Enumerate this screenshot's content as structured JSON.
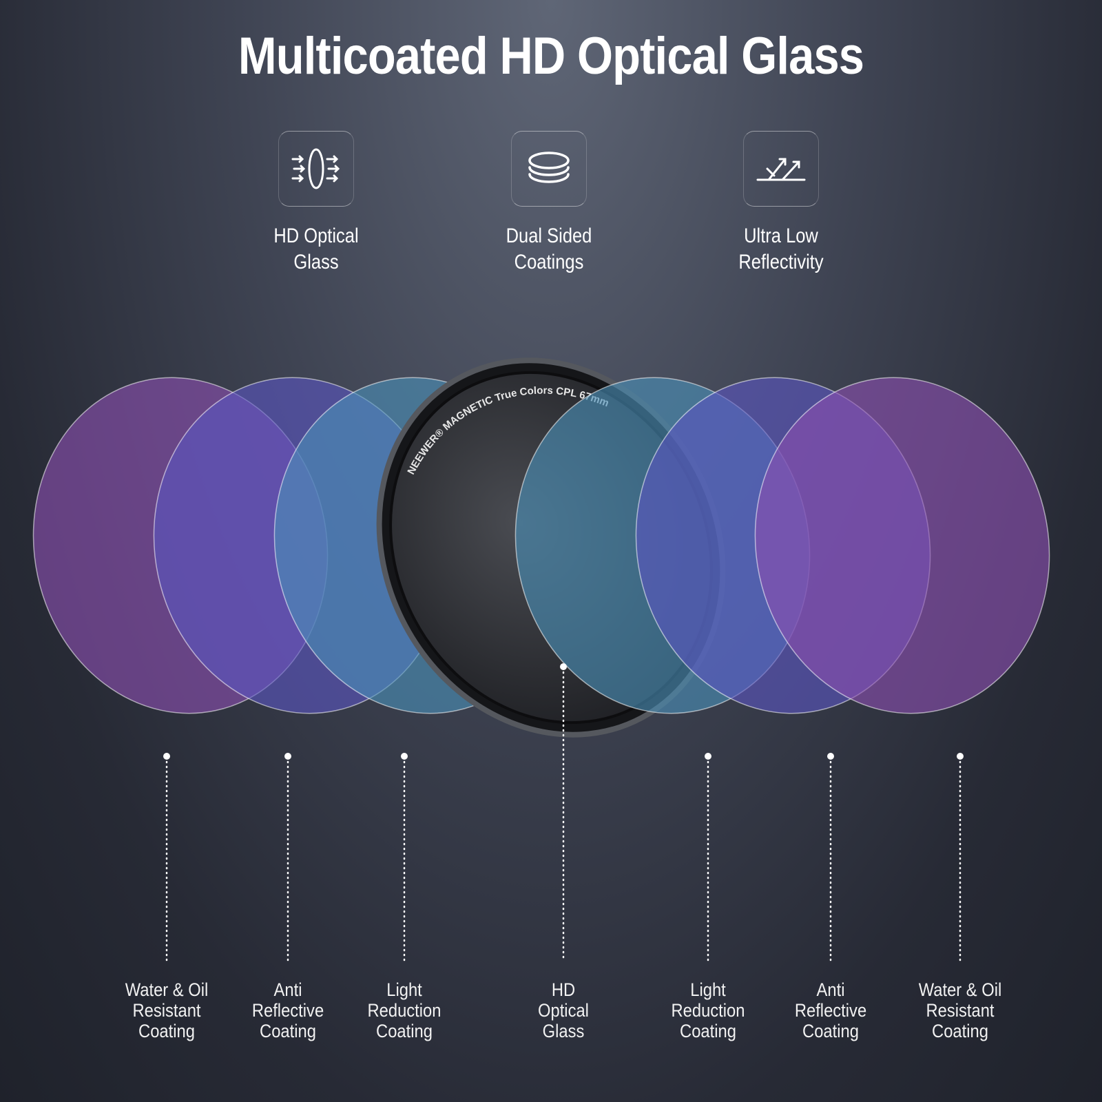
{
  "title": "Multicoated HD Optical Glass",
  "features": [
    {
      "icon": "lens-light-pass-icon",
      "label": "HD Optical\nGlass"
    },
    {
      "icon": "stacked-layers-icon",
      "label": "Dual Sided\nCoatings"
    },
    {
      "icon": "low-reflection-icon",
      "label": "Ultra Low\nReflectivity"
    }
  ],
  "filter": {
    "ring_text": "NEEWER® MAGNETIC  True  Colors  CPL  67mm"
  },
  "layers": [
    {
      "label": "Water & Oil\nResistant\nCoating",
      "color": "#8a4fb0"
    },
    {
      "label": "Anti\nReflective\nCoating",
      "color": "#5a55c0"
    },
    {
      "label": "Light\nReduction\nCoating",
      "color": "#4a8fb8"
    },
    {
      "label": "HD\nOptical\nGlass",
      "color": "#2a2c31"
    },
    {
      "label": "Light\nReduction\nCoating",
      "color": "#4a8fb8"
    },
    {
      "label": "Anti\nReflective\nCoating",
      "color": "#5a55c0"
    },
    {
      "label": "Water & Oil\nResistant\nCoating",
      "color": "#8a4fb0"
    }
  ]
}
